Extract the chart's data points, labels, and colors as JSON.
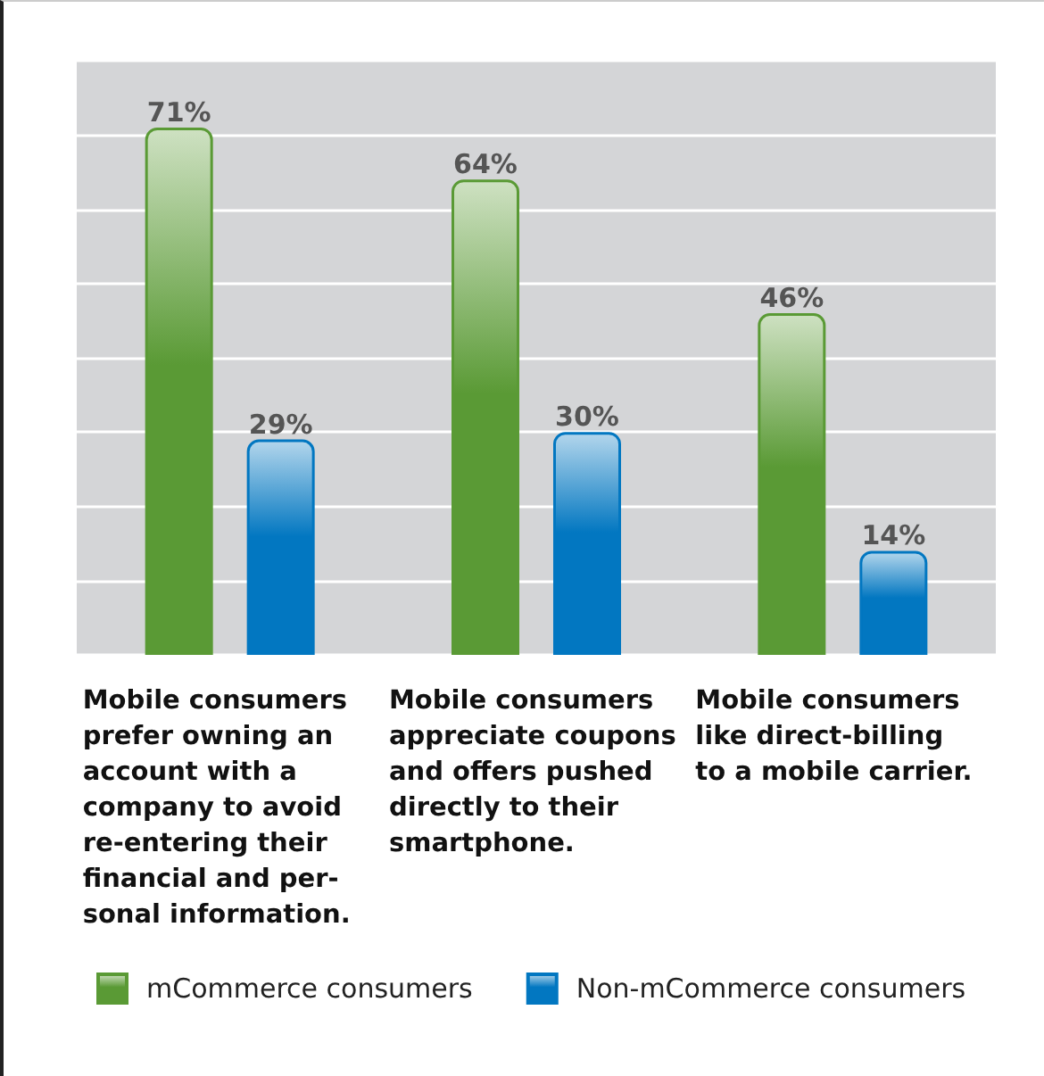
{
  "chart_data": {
    "type": "bar",
    "categories": [
      "Mobile consumers\nprefer owning an\naccount with a\ncompany to avoid\nre-entering their\nfinancial and per-\nsonal information.",
      "Mobile consumers\nappreciate coupons\nand offers pushed\ndirectly to their\nsmartphone.",
      "Mobile consumers\nlike direct-billing\nto a mobile carrier."
    ],
    "series": [
      {
        "name": "mCommerce consumers",
        "color": "#5a9a35",
        "values": [
          71,
          64,
          46
        ],
        "value_labels": [
          "71%",
          "64%",
          "46%"
        ]
      },
      {
        "name": "Non-mCommerce consumers",
        "color": "#0277c1",
        "values": [
          29,
          30,
          14
        ],
        "value_labels": [
          "29%",
          "30%",
          "14%"
        ]
      }
    ],
    "tick_labels": "x",
    "grid": "y",
    "legend": "bottom left"
  }
}
